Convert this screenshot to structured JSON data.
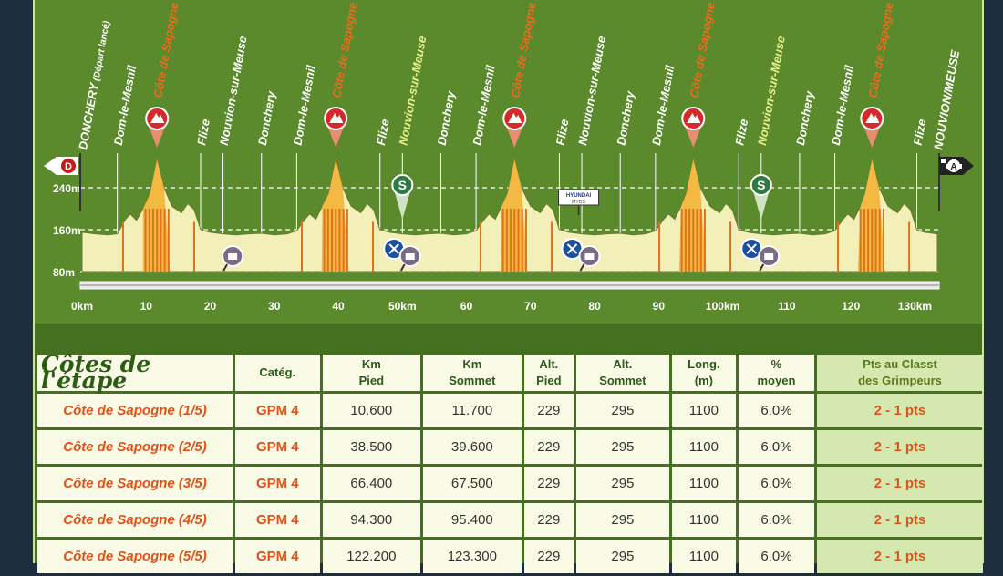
{
  "chart_data": {
    "type": "area",
    "x_unit": "km",
    "x_ticks": [
      0,
      10,
      20,
      30,
      40,
      50,
      60,
      70,
      80,
      90,
      100,
      110,
      120,
      130
    ],
    "x_tick_labels": [
      "0km",
      "10",
      "20",
      "30",
      "40",
      "50km",
      "60",
      "70",
      "80",
      "90",
      "100km",
      "110",
      "120",
      "130km"
    ],
    "xlim": [
      0,
      133.5
    ],
    "y_ticks": [
      80,
      160,
      240
    ],
    "y_tick_labels": [
      "80m",
      "160m",
      "240m"
    ],
    "ylim": [
      80,
      300
    ],
    "elevation_profile": {
      "x": [
        0,
        2,
        4,
        5.5,
        6.8,
        7.5,
        8.5,
        9.5,
        10.6,
        11.7,
        12.8,
        14,
        15.5,
        16.5,
        17.5,
        18.5,
        20,
        22,
        24,
        26,
        28,
        30,
        32,
        33.5,
        34.8,
        35.5,
        36.5,
        37.5,
        38.5,
        39.6,
        40.7,
        42,
        43.5,
        44.5,
        45.5,
        46.5,
        48,
        50,
        52,
        54,
        56,
        58,
        60,
        61.5,
        62.8,
        63.5,
        64.5,
        65.5,
        66.4,
        67.5,
        68.6,
        70,
        71.5,
        72.5,
        73.5,
        74.5,
        76,
        78,
        80,
        82,
        84,
        86,
        88,
        89.5,
        90.8,
        91.5,
        92.5,
        93.5,
        94.3,
        95.4,
        96.5,
        98,
        99.5,
        100.5,
        101.5,
        102.5,
        104,
        106,
        108,
        110,
        112,
        114,
        116,
        117.5,
        118.8,
        119.5,
        120.5,
        121.5,
        122.2,
        123.3,
        124.4,
        125.8,
        127.3,
        128.3,
        129.3,
        130.3,
        131.5,
        133.5
      ],
      "y": [
        155,
        152,
        150,
        152,
        180,
        190,
        178,
        200,
        229,
        295,
        240,
        205,
        192,
        210,
        198,
        160,
        155,
        152,
        150,
        152,
        153,
        150,
        152,
        158,
        180,
        190,
        180,
        205,
        229,
        295,
        240,
        205,
        192,
        210,
        198,
        160,
        155,
        152,
        150,
        152,
        153,
        150,
        152,
        158,
        180,
        190,
        180,
        205,
        229,
        295,
        240,
        205,
        192,
        210,
        198,
        160,
        155,
        152,
        150,
        152,
        153,
        150,
        152,
        158,
        180,
        190,
        180,
        205,
        229,
        295,
        240,
        205,
        192,
        210,
        198,
        160,
        155,
        152,
        150,
        152,
        153,
        150,
        152,
        158,
        180,
        190,
        180,
        205,
        229,
        295,
        240,
        205,
        192,
        210,
        198,
        160,
        155,
        152
      ]
    },
    "places": [
      {
        "km": 0,
        "name": "DONCHERY",
        "sub": "(Départ lancé)",
        "kind": "start"
      },
      {
        "km": 5.5,
        "name": "Dom-le-Mesnil",
        "kind": "town"
      },
      {
        "km": 11.7,
        "name": "Côte de Sapogne",
        "kind": "climb"
      },
      {
        "km": 18.5,
        "name": "Flize",
        "kind": "town"
      },
      {
        "km": 22,
        "name": "Nouvion-sur-Meuse",
        "kind": "town"
      },
      {
        "km": 28,
        "name": "Donchery",
        "kind": "town"
      },
      {
        "km": 33.5,
        "name": "Dom-le-Mesnil",
        "kind": "town"
      },
      {
        "km": 39.6,
        "name": "Côte de Sapogne",
        "kind": "climb"
      },
      {
        "km": 46.5,
        "name": "Flize",
        "kind": "town"
      },
      {
        "km": 50,
        "name": "Nouvion-sur-Meuse",
        "kind": "sprint-town"
      },
      {
        "km": 56,
        "name": "Donchery",
        "kind": "town"
      },
      {
        "km": 61.5,
        "name": "Dom-le-Mesnil",
        "kind": "town"
      },
      {
        "km": 67.5,
        "name": "Côte de Sapogne",
        "kind": "climb"
      },
      {
        "km": 74.5,
        "name": "Flize",
        "kind": "town"
      },
      {
        "km": 78,
        "name": "Nouvion-sur-Meuse",
        "kind": "town"
      },
      {
        "km": 84,
        "name": "Donchery",
        "kind": "town"
      },
      {
        "km": 89.5,
        "name": "Dom-le-Mesnil",
        "kind": "town"
      },
      {
        "km": 95.4,
        "name": "Côte de Sapogne",
        "kind": "climb"
      },
      {
        "km": 102.5,
        "name": "Flize",
        "kind": "town"
      },
      {
        "km": 106,
        "name": "Nouvion-sur-Meuse",
        "kind": "sprint-town"
      },
      {
        "km": 112,
        "name": "Donchery",
        "kind": "town"
      },
      {
        "km": 117.5,
        "name": "Dom-le-Mesnil",
        "kind": "town"
      },
      {
        "km": 123.3,
        "name": "Côte de Sapogne",
        "kind": "climb"
      },
      {
        "km": 130.3,
        "name": "Flize",
        "kind": "town"
      },
      {
        "km": 133.5,
        "name": "NOUVION/MEUSE",
        "kind": "finish"
      }
    ],
    "start_flag": "D",
    "finish_flag": "A",
    "sprint_marker": "S",
    "sprint_km": [
      50,
      106
    ],
    "feed_km": [
      48.7,
      76.5,
      104.5
    ],
    "photo_km": [
      23.5,
      51.2,
      79.2,
      107.2
    ],
    "sign_km": 77.5,
    "sign_text": [
      "HYUNDAI",
      "MYOS"
    ],
    "colors": {
      "background": "#5a8a2c",
      "profile_fill": "#f2efb8",
      "profile_stroke": "#6b7a2a",
      "climb_fill": "#f4b336",
      "climb_stripe": "#e0731a",
      "climb_label": "#ef6a1f",
      "climb_marker": "#d62a2a",
      "sprint_marker": "#2f7a43",
      "feed_marker": "#1f4fa0",
      "town_label": "#ffffff",
      "sprint_town_label": "#e8f08a"
    }
  },
  "table": {
    "title": "Côtes de l'étape",
    "headers": [
      [
        "Catég."
      ],
      [
        "Km",
        "Pied"
      ],
      [
        "Km",
        "Sommet"
      ],
      [
        "Alt.",
        "Pied"
      ],
      [
        "Alt.",
        "Sommet"
      ],
      [
        "Long.",
        "(m)"
      ],
      [
        "%",
        "moyen"
      ],
      [
        "Pts au Classt",
        "des Grimpeurs"
      ]
    ],
    "rows": [
      {
        "name": "Côte de Sapogne (1/5)",
        "cat": "GPM 4",
        "km_pied": "10.600",
        "km_sommet": "11.700",
        "alt_pied": "229",
        "alt_sommet": "295",
        "long": "1100",
        "pct": "6.0%",
        "pts": "2 - 1 pts"
      },
      {
        "name": "Côte de Sapogne (2/5)",
        "cat": "GPM 4",
        "km_pied": "38.500",
        "km_sommet": "39.600",
        "alt_pied": "229",
        "alt_sommet": "295",
        "long": "1100",
        "pct": "6.0%",
        "pts": "2 - 1 pts"
      },
      {
        "name": "Côte de Sapogne (3/5)",
        "cat": "GPM 4",
        "km_pied": "66.400",
        "km_sommet": "67.500",
        "alt_pied": "229",
        "alt_sommet": "295",
        "long": "1100",
        "pct": "6.0%",
        "pts": "2 - 1 pts"
      },
      {
        "name": "Côte de Sapogne (4/5)",
        "cat": "GPM 4",
        "km_pied": "94.300",
        "km_sommet": "95.400",
        "alt_pied": "229",
        "alt_sommet": "295",
        "long": "1100",
        "pct": "6.0%",
        "pts": "2 - 1 pts"
      },
      {
        "name": "Côte de Sapogne (5/5)",
        "cat": "GPM 4",
        "km_pied": "122.200",
        "km_sommet": "123.300",
        "alt_pied": "229",
        "alt_sommet": "295",
        "long": "1100",
        "pct": "6.0%",
        "pts": "2 - 1 pts"
      }
    ]
  }
}
